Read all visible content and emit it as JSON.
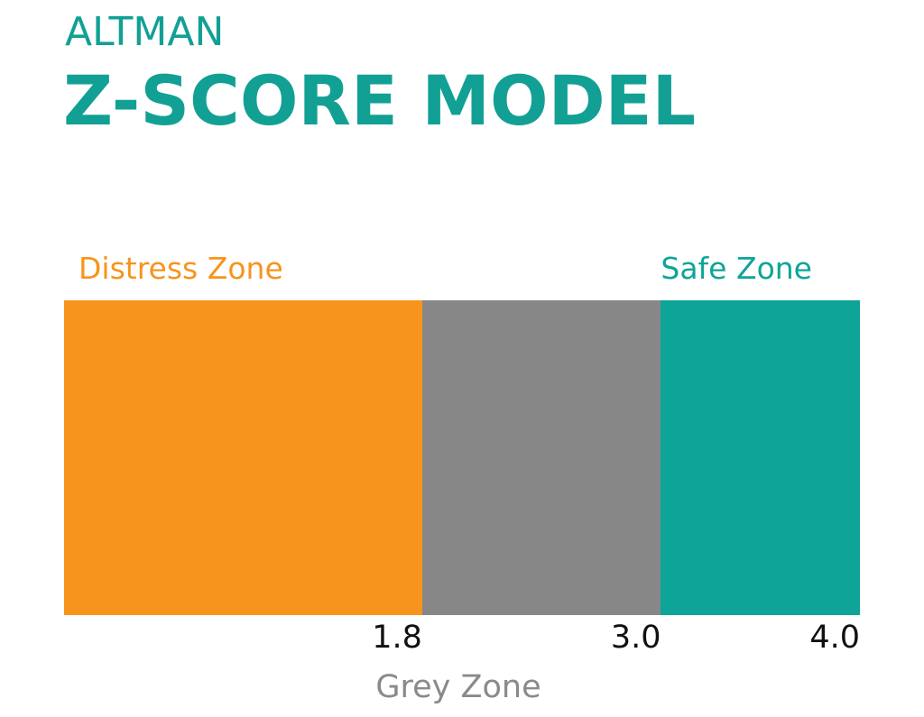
{
  "title": {
    "line1": "ALTMAN",
    "line2": "Z-SCORE MODEL"
  },
  "colors": {
    "title": "#12a095",
    "distress": "#f7941d",
    "grey": "#878787",
    "safe": "#0ea598",
    "grey_label": "#8a8a8a"
  },
  "chart_data": {
    "type": "bar",
    "orientation": "horizontal-segmented",
    "scale_max": 4.0,
    "zones": [
      {
        "name": "Distress Zone",
        "from": 0,
        "to": 1.8,
        "color": "#f7941d"
      },
      {
        "name": "Grey Zone",
        "from": 1.8,
        "to": 3.0,
        "color": "#878787"
      },
      {
        "name": "Safe Zone",
        "from": 3.0,
        "to": 4.0,
        "color": "#0ea598"
      }
    ],
    "ticks": [
      {
        "label": "1.8",
        "value": 1.8
      },
      {
        "label": "3.0",
        "value": 3.0
      },
      {
        "label": "4.0",
        "value": 4.0
      }
    ],
    "labels": {
      "distress": "Distress Zone",
      "safe": "Safe Zone",
      "grey": "Grey Zone"
    }
  }
}
